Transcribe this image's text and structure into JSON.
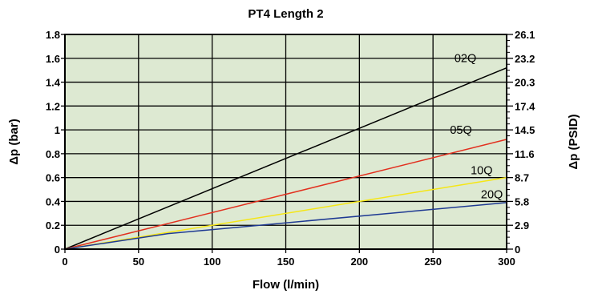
{
  "chart_data": {
    "type": "line",
    "title": "PT4 Length 2",
    "xlabel": "Flow (l/min)",
    "ylabel": "Δp (bar)",
    "ylabel_right": "Δp (PSID)",
    "xlim": [
      0,
      300
    ],
    "ylim": [
      0,
      1.8
    ],
    "x_ticks": [
      0,
      50,
      100,
      150,
      200,
      250,
      300
    ],
    "x_tick_labels": [
      "0",
      "50",
      "100",
      "150",
      "200",
      "250",
      "300"
    ],
    "y_ticks": [
      0,
      0.2,
      0.4,
      0.6,
      0.8,
      1,
      1.2,
      1.4,
      1.6,
      1.8
    ],
    "y_tick_labels": [
      "0",
      "0.2",
      "0.4",
      "0.6",
      "0.8",
      "1",
      "1.2",
      "1.4",
      "1.6",
      "1.8"
    ],
    "y_right_tick_labels": [
      "0",
      "2.9",
      "5.8",
      "8.7",
      "11.6",
      "14.5",
      "17.4",
      "20.3",
      "23.2",
      "26.1"
    ],
    "grid": true,
    "background_color": "#dde9d2",
    "series": [
      {
        "name": "02Q",
        "color": "#000000",
        "x": [
          0,
          300
        ],
        "y": [
          0,
          1.52
        ]
      },
      {
        "name": "05Q",
        "color": "#e2301f",
        "x": [
          0,
          300
        ],
        "y": [
          0,
          0.92
        ]
      },
      {
        "name": "10Q",
        "color": "#f5e615",
        "x": [
          0,
          300
        ],
        "y": [
          0,
          0.6
        ]
      },
      {
        "name": "20Q",
        "color": "#1f3a93",
        "x": [
          0,
          70,
          300
        ],
        "y": [
          0,
          0.13,
          0.39
        ]
      }
    ]
  }
}
